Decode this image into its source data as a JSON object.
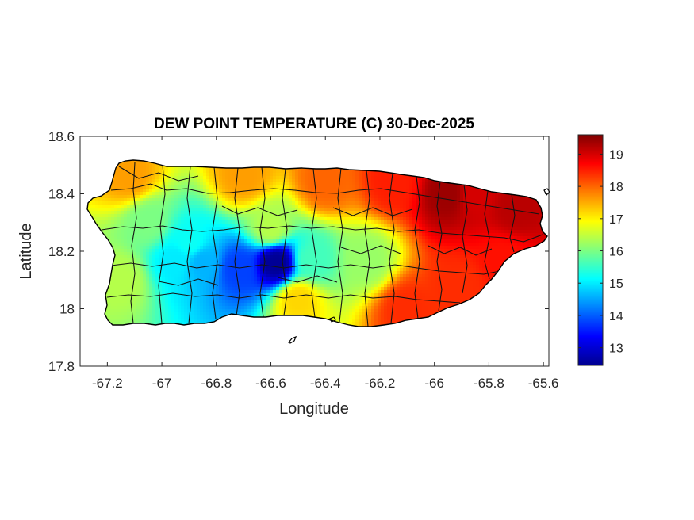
{
  "chart_data": {
    "type": "heatmap",
    "title": "DEW POINT TEMPERATURE (C) 30-Dec-2025",
    "xlabel": "Longitude",
    "ylabel": "Latitude",
    "xlim": [
      -67.3,
      -65.58
    ],
    "ylim": [
      17.8,
      18.6
    ],
    "xticks": [
      -67.2,
      -67,
      -66.8,
      -66.6,
      -66.4,
      -66.2,
      -66,
      -65.8,
      -65.6
    ],
    "xtick_labels": [
      "-67.2",
      "-67",
      "-66.8",
      "-66.6",
      "-66.4",
      "-66.2",
      "-66",
      "-65.8",
      "-65.6"
    ],
    "yticks": [
      17.8,
      18,
      18.2,
      18.4,
      18.6
    ],
    "ytick_labels": [
      "17.8",
      "18",
      "18.2",
      "18.4",
      "18.6"
    ],
    "colorbar": {
      "colormap": "jet",
      "range": [
        12.45,
        19.6
      ],
      "ticks": [
        13,
        14,
        15,
        16,
        17,
        18,
        19
      ],
      "tick_labels": [
        "13",
        "14",
        "15",
        "16",
        "17",
        "18",
        "19"
      ]
    },
    "field_features": [
      {
        "lon": -66.58,
        "lat": 18.16,
        "value": 12.6
      },
      {
        "lon": -66.72,
        "lat": 18.14,
        "value": 13.8
      },
      {
        "lon": -66.85,
        "lat": 18.16,
        "value": 14.6
      },
      {
        "lon": -66.95,
        "lat": 18.17,
        "value": 15.0
      },
      {
        "lon": -66.9,
        "lat": 18.23,
        "value": 15.2
      },
      {
        "lon": -66.45,
        "lat": 18.17,
        "value": 15.6
      },
      {
        "lon": -67.05,
        "lat": 18.3,
        "value": 16.0
      },
      {
        "lon": -66.25,
        "lat": 18.17,
        "value": 16.2
      },
      {
        "lon": -67.15,
        "lat": 18.1,
        "value": 16.4
      },
      {
        "lon": -66.6,
        "lat": 18.28,
        "value": 16.4
      },
      {
        "lon": -66.5,
        "lat": 18.03,
        "value": 17.2
      },
      {
        "lon": -67.12,
        "lat": 18.46,
        "value": 17.6
      },
      {
        "lon": -66.7,
        "lat": 18.46,
        "value": 17.6
      },
      {
        "lon": -66.4,
        "lat": 18.44,
        "value": 18.0
      },
      {
        "lon": -66.1,
        "lat": 18.0,
        "value": 18.4
      },
      {
        "lon": -66.15,
        "lat": 18.44,
        "value": 18.5
      },
      {
        "lon": -65.95,
        "lat": 18.4,
        "value": 19.4
      },
      {
        "lon": -65.7,
        "lat": 18.35,
        "value": 19.2
      },
      {
        "lon": -65.85,
        "lat": 18.4,
        "value": 19.0
      },
      {
        "lon": -65.75,
        "lat": 18.17,
        "value": 18.6
      },
      {
        "lon": -65.9,
        "lat": 18.08,
        "value": 18.4
      }
    ]
  }
}
